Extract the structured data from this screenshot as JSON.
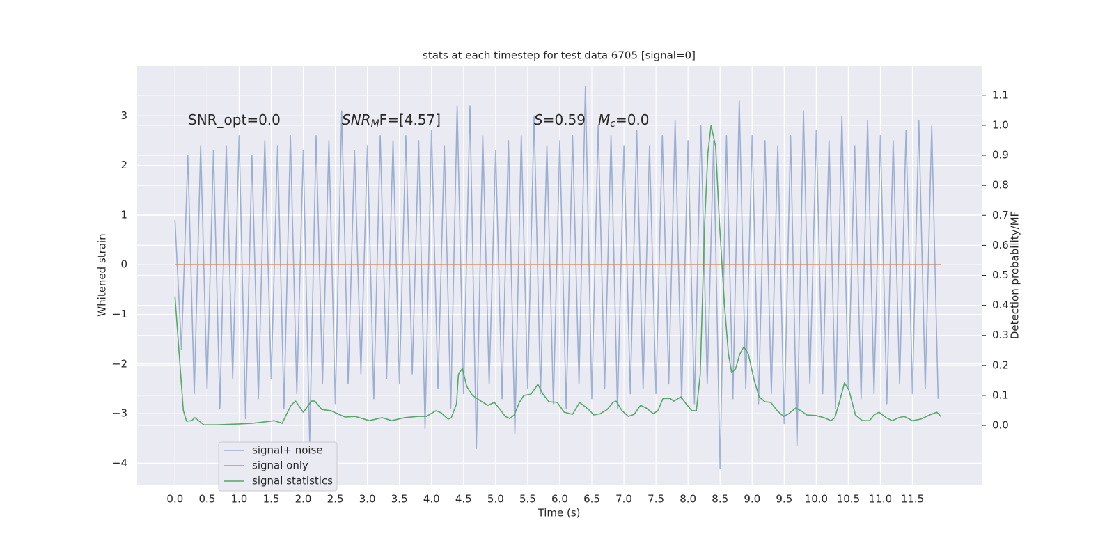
{
  "chart_data": {
    "type": "line",
    "title": "stats at each timestep for test data 6705 [signal=0]",
    "xlabel": "Time (s)",
    "ylabel": "Whitened strain",
    "y2label": "Detection probability/MF",
    "xlim": [
      -0.59,
      12.58
    ],
    "ylim": [
      -4.43,
      4.0
    ],
    "y2lim": [
      -0.197,
      1.197
    ],
    "xticks": [
      {
        "value": 0,
        "label": "0.0"
      },
      {
        "value": 0.5,
        "label": "0.5"
      },
      {
        "value": 1,
        "label": "1.0"
      },
      {
        "value": 1.5,
        "label": "1.5"
      },
      {
        "value": 2,
        "label": "2.0"
      },
      {
        "value": 2.5,
        "label": "2.5"
      },
      {
        "value": 3,
        "label": "3.0"
      },
      {
        "value": 3.5,
        "label": "3.5"
      },
      {
        "value": 4,
        "label": "4.0"
      },
      {
        "value": 4.5,
        "label": "4.5"
      },
      {
        "value": 5,
        "label": "5.0"
      },
      {
        "value": 5.5,
        "label": "5.5"
      },
      {
        "value": 6,
        "label": "6.0"
      },
      {
        "value": 6.5,
        "label": "6.5"
      },
      {
        "value": 7,
        "label": "7.0"
      },
      {
        "value": 7.5,
        "label": "7.5"
      },
      {
        "value": 8,
        "label": "8.0"
      },
      {
        "value": 8.5,
        "label": "8.5"
      },
      {
        "value": 9,
        "label": "9.0"
      },
      {
        "value": 9.5,
        "label": "9.5"
      },
      {
        "value": 10,
        "label": "10.0"
      },
      {
        "value": 10.5,
        "label": "10.5"
      },
      {
        "value": 11,
        "label": "11.0"
      },
      {
        "value": 11.5,
        "label": "11.5"
      }
    ],
    "yticks": [
      {
        "value": -4,
        "label": "−4"
      },
      {
        "value": -3,
        "label": "−3"
      },
      {
        "value": -2,
        "label": "−2"
      },
      {
        "value": -1,
        "label": "−1"
      },
      0,
      1,
      2,
      3
    ],
    "y2ticks": [
      {
        "value": 0,
        "label": "0.0"
      },
      {
        "value": 0.1,
        "label": "0.1"
      },
      {
        "value": 0.2,
        "label": "0.2"
      },
      {
        "value": 0.3,
        "label": "0.3"
      },
      {
        "value": 0.4,
        "label": "0.4"
      },
      {
        "value": 0.5,
        "label": "0.5"
      },
      {
        "value": 0.6,
        "label": "0.6"
      },
      {
        "value": 0.7,
        "label": "0.7"
      },
      {
        "value": 0.8,
        "label": "0.8"
      },
      {
        "value": 0.9,
        "label": "0.9"
      },
      {
        "value": 1,
        "label": "1.0"
      },
      {
        "value": 1.1,
        "label": "1.1"
      }
    ],
    "grid": true,
    "legend": "lower left",
    "annotations": [
      [
        {
          "text": "SNR_opt=0.0"
        }
      ],
      [
        {
          "text": "SNR",
          "italic": true
        },
        {
          "text": "M",
          "italic": true,
          "sub": true
        },
        {
          "text": "F=[4.57]"
        }
      ],
      [
        {
          "text": "S",
          "italic": true
        },
        {
          "text": "=0.59"
        }
      ],
      [
        {
          "text": "M",
          "italic": true
        },
        {
          "text": "c",
          "italic": true,
          "sub": true
        },
        {
          "text": "=0.0"
        }
      ]
    ],
    "series": [
      {
        "name": "signal+ noise",
        "color": "#4c72b0",
        "opacity": 0.5,
        "x": [
          0,
          0.1,
          0.2,
          0.3,
          0.4,
          0.5,
          0.6,
          0.7,
          0.8,
          0.9,
          1,
          1.1,
          1.2,
          1.3,
          1.4,
          1.5,
          1.6,
          1.7,
          1.8,
          1.9,
          2,
          2.1,
          2.2,
          2.3,
          2.4,
          2.5,
          2.6,
          2.7,
          2.8,
          2.9,
          3,
          3.1,
          3.2,
          3.3,
          3.4,
          3.5,
          3.6,
          3.7,
          3.8,
          3.9,
          4,
          4.1,
          4.2,
          4.3,
          4.4,
          4.5,
          4.6,
          4.7,
          4.8,
          4.9,
          5,
          5.1,
          5.2,
          5.3,
          5.4,
          5.5,
          5.6,
          5.7,
          5.8,
          5.9,
          6,
          6.1,
          6.2,
          6.3,
          6.4,
          6.5,
          6.6,
          6.7,
          6.8,
          6.9,
          7,
          7.1,
          7.2,
          7.3,
          7.4,
          7.5,
          7.6,
          7.7,
          7.8,
          7.9,
          8,
          8.1,
          8.2,
          8.3,
          8.4,
          8.5,
          8.6,
          8.7,
          8.8,
          8.9,
          9,
          9.1,
          9.2,
          9.3,
          9.4,
          9.5,
          9.6,
          9.7,
          9.8,
          9.9,
          10,
          10.1,
          10.2,
          10.3,
          10.4,
          10.5,
          10.6,
          10.7,
          10.8,
          10.9,
          11,
          11.1,
          11.2,
          11.3,
          11.4,
          11.5,
          11.6,
          11.7,
          11.8,
          11.9
        ],
        "values": [
          0.9,
          -1.7,
          2.2,
          -2.6,
          2.4,
          -2.5,
          2.3,
          -2.9,
          2.4,
          -2.3,
          2.6,
          -3.1,
          2.2,
          -2.7,
          2.5,
          -2.3,
          2.4,
          -2.9,
          2.6,
          -2.6,
          2.3,
          -3.6,
          2.6,
          -2.4,
          2.5,
          -2.8,
          3.1,
          -2.4,
          2.3,
          -2.2,
          2.4,
          -2.7,
          2.6,
          -2.3,
          2.5,
          -2.4,
          2.6,
          -2.2,
          2.5,
          -3.3,
          2.7,
          -2.5,
          2.4,
          -2.9,
          3.2,
          -2.6,
          3.2,
          -3.7,
          2.6,
          -2.4,
          2.3,
          -2.7,
          2.5,
          -3.4,
          2.6,
          -2.5,
          3.0,
          -2.6,
          2.4,
          -2.8,
          2.5,
          -2.9,
          2.6,
          -2.4,
          3.6,
          -2.7,
          2.8,
          -2.5,
          2.6,
          -2.9,
          2.4,
          -2.6,
          2.7,
          -2.5,
          2.4,
          -2.6,
          2.6,
          -2.4,
          2.9,
          -2.7,
          2.5,
          -2.8,
          2.8,
          -2.4,
          2.5,
          -4.1,
          2.6,
          -2.7,
          3.3,
          -2.5,
          2.6,
          -2.8,
          2.5,
          -2.6,
          2.4,
          -3.2,
          2.6,
          -3.65,
          3.1,
          -2.4,
          2.7,
          -2.6,
          2.5,
          -2.9,
          3.0,
          -2.5,
          2.4,
          -2.7,
          2.9,
          -2.6,
          2.6,
          -2.8,
          2.5,
          -2.4,
          2.7,
          -2.6,
          2.9,
          -2.5,
          2.8,
          -2.7
        ]
      },
      {
        "name": "signal only",
        "color": "#dd8452",
        "opacity": 1,
        "x": [
          0,
          11.95
        ],
        "values": [
          0,
          0
        ]
      },
      {
        "name": "signal statistics",
        "color": "#55a868",
        "opacity": 1,
        "axis": "y2",
        "x": [
          0,
          0.13,
          0.18,
          0.26,
          0.31,
          0.45,
          0.65,
          1.0,
          1.2,
          1.4,
          1.55,
          1.67,
          1.81,
          1.88,
          2.0,
          2.13,
          2.18,
          2.29,
          2.43,
          2.65,
          2.81,
          3.03,
          3.23,
          3.38,
          3.58,
          3.79,
          3.92,
          4.07,
          4.15,
          4.26,
          4.31,
          4.39,
          4.42,
          4.48,
          4.55,
          4.64,
          4.77,
          4.88,
          4.98,
          5.07,
          5.15,
          5.22,
          5.29,
          5.37,
          5.44,
          5.55,
          5.66,
          5.74,
          5.83,
          5.96,
          6.07,
          6.2,
          6.31,
          6.45,
          6.53,
          6.63,
          6.74,
          6.83,
          6.88,
          6.97,
          7.07,
          7.16,
          7.26,
          7.35,
          7.46,
          7.53,
          7.61,
          7.72,
          7.78,
          7.89,
          7.97,
          8.06,
          8.13,
          8.19,
          8.26,
          8.31,
          8.36,
          8.43,
          8.49,
          8.57,
          8.63,
          8.68,
          8.74,
          8.81,
          8.87,
          8.94,
          9.03,
          9.11,
          9.2,
          9.29,
          9.39,
          9.49,
          9.57,
          9.68,
          9.76,
          9.85,
          9.99,
          10.12,
          10.23,
          10.29,
          10.36,
          10.44,
          10.51,
          10.61,
          10.72,
          10.83,
          10.9,
          10.98,
          11.09,
          11.18,
          11.29,
          11.37,
          11.5,
          11.63,
          11.77,
          11.88,
          11.94
        ],
        "values": [
          0.43,
          0.05,
          0.014,
          0.016,
          0.026,
          0.002,
          0.002,
          0.005,
          0.007,
          0.012,
          0.016,
          0.007,
          0.067,
          0.081,
          0.044,
          0.081,
          0.081,
          0.053,
          0.049,
          0.028,
          0.03,
          0.016,
          0.026,
          0.016,
          0.026,
          0.03,
          0.03,
          0.049,
          0.042,
          0.021,
          0.026,
          0.072,
          0.17,
          0.19,
          0.13,
          0.1,
          0.081,
          0.067,
          0.077,
          0.053,
          0.03,
          0.023,
          0.035,
          0.077,
          0.1,
          0.104,
          0.137,
          0.104,
          0.079,
          0.077,
          0.044,
          0.037,
          0.077,
          0.053,
          0.035,
          0.039,
          0.053,
          0.077,
          0.081,
          0.049,
          0.03,
          0.037,
          0.067,
          0.058,
          0.039,
          0.049,
          0.09,
          0.09,
          0.081,
          0.095,
          0.072,
          0.049,
          0.049,
          0.169,
          0.675,
          0.907,
          1.0,
          0.93,
          0.675,
          0.397,
          0.239,
          0.176,
          0.188,
          0.239,
          0.262,
          0.239,
          0.153,
          0.095,
          0.079,
          0.077,
          0.049,
          0.03,
          0.039,
          0.058,
          0.049,
          0.035,
          0.033,
          0.026,
          0.016,
          0.026,
          0.077,
          0.142,
          0.118,
          0.035,
          0.016,
          0.016,
          0.035,
          0.044,
          0.026,
          0.016,
          0.026,
          0.03,
          0.016,
          0.021,
          0.035,
          0.044,
          0.03
        ]
      }
    ]
  }
}
